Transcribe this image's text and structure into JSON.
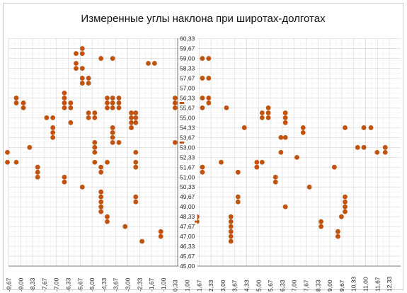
{
  "chart_data": {
    "type": "scatter",
    "title": "Измеренные углы наклона при широтах-долготах",
    "xlabel": "",
    "ylabel": "",
    "x_ticks": [
      "-9,67",
      "-9,00",
      "-8,33",
      "-7,67",
      "-7,00",
      "-6,33",
      "-5,67",
      "-5,00",
      "-4,33",
      "-3,67",
      "-3,00",
      "-2,33",
      "-1,67",
      "-1,00",
      "0,33",
      "1,00",
      "1,67",
      "2,33",
      "3,00",
      "3,67",
      "4,33",
      "5,00",
      "5,67",
      "6,33",
      "7,00",
      "7,67",
      "8,33",
      "9,00",
      "9,67",
      "10,33",
      "11,00",
      "11,67",
      "12,33"
    ],
    "y_ticks": [
      "45,00",
      "45,67",
      "46,33",
      "47,00",
      "47,67",
      "48,33",
      "49,00",
      "49,67",
      "50,33",
      "51,00",
      "51,67",
      "52,33",
      "53,00",
      "53,67",
      "54,33",
      "55,00",
      "55,67",
      "56,33",
      "57,00",
      "57,67",
      "58,33",
      "59,00",
      "59,67",
      "60,33"
    ],
    "xlim": [
      -10,
      12.6
    ],
    "ylim": [
      45,
      60.33
    ],
    "grid": true,
    "marker_color": "#c0530f",
    "points": [
      [
        -9.75,
        52.67
      ],
      [
        -9.75,
        52.0
      ],
      [
        -9.25,
        56.33
      ],
      [
        -9.25,
        56.0
      ],
      [
        -9.25,
        52.0
      ],
      [
        -8.85,
        56.0
      ],
      [
        -8.85,
        55.67
      ],
      [
        -8.5,
        53.0
      ],
      [
        -8.05,
        51.67
      ],
      [
        -8.05,
        51.33
      ],
      [
        -8.05,
        51.0
      ],
      [
        -7.55,
        55.0
      ],
      [
        -7.2,
        55.0
      ],
      [
        -7.2,
        54.33
      ],
      [
        -7.2,
        54.0
      ],
      [
        -7.2,
        53.67
      ],
      [
        -6.55,
        56.67
      ],
      [
        -6.55,
        56.33
      ],
      [
        -6.55,
        56.0
      ],
      [
        -6.55,
        55.67
      ],
      [
        -6.55,
        51.0
      ],
      [
        -6.55,
        50.67
      ],
      [
        -6.2,
        56.0
      ],
      [
        -6.2,
        55.67
      ],
      [
        -6.2,
        54.67
      ],
      [
        -5.9,
        59.33
      ],
      [
        -5.9,
        58.67
      ],
      [
        -5.9,
        58.33
      ],
      [
        -5.55,
        59.67
      ],
      [
        -5.55,
        59.33
      ],
      [
        -5.55,
        58.33
      ],
      [
        -5.55,
        57.67
      ],
      [
        -5.55,
        57.33
      ],
      [
        -5.55,
        50.33
      ],
      [
        -5.2,
        57.67
      ],
      [
        -5.2,
        57.33
      ],
      [
        -5.2,
        55.33
      ],
      [
        -5.2,
        55.0
      ],
      [
        -4.85,
        55.33
      ],
      [
        -4.85,
        55.0
      ],
      [
        -4.85,
        53.33
      ],
      [
        -4.85,
        53.0
      ],
      [
        -4.85,
        52.67
      ],
      [
        -4.85,
        52.0
      ],
      [
        -4.5,
        59.0
      ],
      [
        -4.5,
        51.67
      ],
      [
        -4.5,
        51.33
      ],
      [
        -4.5,
        50.0
      ],
      [
        -4.5,
        49.67
      ],
      [
        -4.5,
        49.33
      ],
      [
        -4.5,
        49.0
      ],
      [
        -4.5,
        48.67
      ],
      [
        -4.15,
        56.33
      ],
      [
        -4.15,
        56.0
      ],
      [
        -4.15,
        55.67
      ],
      [
        -4.15,
        52.0
      ],
      [
        -4.15,
        48.33
      ],
      [
        -4.15,
        48.0
      ],
      [
        -3.85,
        59.0
      ],
      [
        -3.85,
        56.33
      ],
      [
        -3.85,
        56.0
      ],
      [
        -3.85,
        55.67
      ],
      [
        -3.85,
        54.33
      ],
      [
        -3.85,
        54.0
      ],
      [
        -3.85,
        53.67
      ],
      [
        -3.85,
        53.33
      ],
      [
        -3.5,
        56.33
      ],
      [
        -3.5,
        56.0
      ],
      [
        -3.5,
        55.67
      ],
      [
        -3.5,
        53.33
      ],
      [
        -3.15,
        47.67
      ],
      [
        -2.8,
        55.33
      ],
      [
        -2.8,
        55.0
      ],
      [
        -2.8,
        54.67
      ],
      [
        -2.8,
        54.33
      ],
      [
        -2.55,
        55.33
      ],
      [
        -2.55,
        55.0
      ],
      [
        -2.55,
        54.67
      ],
      [
        -2.55,
        52.67
      ],
      [
        -2.55,
        52.0
      ],
      [
        -2.55,
        51.67
      ],
      [
        -2.55,
        49.67
      ],
      [
        -2.55,
        49.33
      ],
      [
        -2.2,
        46.67
      ],
      [
        -1.85,
        58.67
      ],
      [
        -1.5,
        58.67
      ],
      [
        -1.15,
        47.33
      ],
      [
        -1.15,
        47.0
      ],
      [
        0.3,
        56.33
      ],
      [
        0.3,
        56.0
      ],
      [
        0.3,
        55.67
      ],
      [
        0.3,
        53.33
      ],
      [
        0.7,
        56.33
      ],
      [
        0.7,
        56.0
      ],
      [
        0.7,
        55.67
      ],
      [
        0.7,
        53.33
      ],
      [
        1.55,
        48.33
      ],
      [
        1.55,
        48.0
      ],
      [
        1.85,
        59.0
      ],
      [
        1.85,
        57.67
      ],
      [
        1.85,
        56.33
      ],
      [
        1.85,
        55.67
      ],
      [
        1.85,
        51.67
      ],
      [
        1.85,
        51.33
      ],
      [
        2.2,
        59.0
      ],
      [
        2.2,
        57.67
      ],
      [
        2.2,
        56.33
      ],
      [
        2.2,
        56.0
      ],
      [
        2.9,
        52.0
      ],
      [
        3.2,
        55.67
      ],
      [
        3.45,
        48.33
      ],
      [
        3.45,
        48.0
      ],
      [
        3.45,
        47.67
      ],
      [
        3.45,
        47.33
      ],
      [
        3.45,
        47.0
      ],
      [
        3.45,
        46.67
      ],
      [
        3.85,
        51.33
      ],
      [
        3.85,
        49.67
      ],
      [
        3.85,
        49.33
      ],
      [
        4.2,
        54.33
      ],
      [
        4.9,
        52.0
      ],
      [
        4.9,
        51.67
      ],
      [
        5.2,
        55.33
      ],
      [
        5.2,
        55.0
      ],
      [
        5.2,
        52.0
      ],
      [
        5.55,
        55.67
      ],
      [
        5.55,
        55.33
      ],
      [
        5.55,
        55.0
      ],
      [
        5.95,
        51.0
      ],
      [
        5.95,
        50.67
      ],
      [
        6.25,
        53.67
      ],
      [
        6.25,
        52.67
      ],
      [
        6.5,
        55.33
      ],
      [
        6.5,
        55.0
      ],
      [
        6.5,
        54.67
      ],
      [
        6.5,
        53.67
      ],
      [
        6.5,
        49.0
      ],
      [
        7.15,
        52.33
      ],
      [
        7.5,
        54.33
      ],
      [
        7.5,
        54.0
      ],
      [
        7.85,
        50.33
      ],
      [
        8.5,
        48.0
      ],
      [
        8.5,
        47.67
      ],
      [
        9.25,
        51.67
      ],
      [
        9.45,
        47.33
      ],
      [
        9.45,
        47.0
      ],
      [
        9.65,
        48.33
      ],
      [
        9.85,
        54.33
      ],
      [
        9.85,
        49.67
      ],
      [
        9.85,
        49.33
      ],
      [
        9.85,
        49.0
      ],
      [
        9.85,
        48.67
      ],
      [
        10.55,
        53.0
      ],
      [
        10.9,
        54.33
      ],
      [
        10.9,
        53.0
      ],
      [
        11.3,
        54.33
      ],
      [
        11.65,
        52.67
      ],
      [
        12.1,
        53.0
      ],
      [
        12.1,
        52.67
      ]
    ]
  }
}
